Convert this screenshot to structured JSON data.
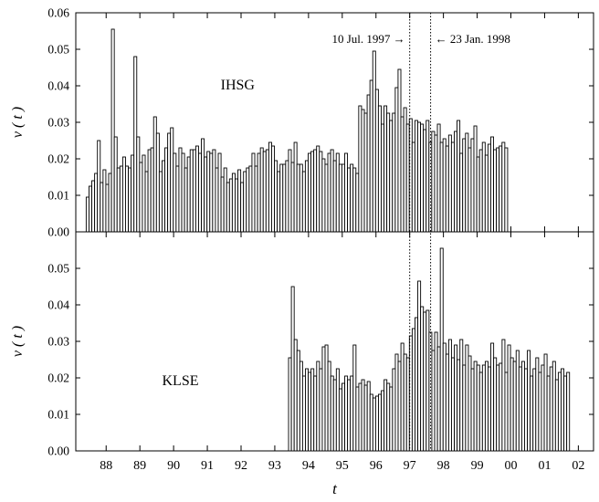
{
  "chart_data": [
    {
      "type": "bar",
      "panel_label": "IHSG",
      "ylabel": "v ( t )",
      "ylim": [
        0,
        0.06
      ],
      "yticks": [
        "0.00",
        "0.01",
        "0.02",
        "0.03",
        "0.04",
        "0.05",
        "0.06"
      ],
      "x_start": 1987.45,
      "x_step": 0.0833,
      "values": [
        0.0095,
        0.0125,
        0.014,
        0.016,
        0.025,
        0.0135,
        0.017,
        0.013,
        0.016,
        0.0555,
        0.026,
        0.0175,
        0.018,
        0.0205,
        0.018,
        0.0175,
        0.021,
        0.048,
        0.026,
        0.019,
        0.021,
        0.0165,
        0.0225,
        0.023,
        0.0315,
        0.027,
        0.0165,
        0.0195,
        0.023,
        0.027,
        0.0285,
        0.0215,
        0.018,
        0.023,
        0.0215,
        0.0175,
        0.0205,
        0.0225,
        0.0225,
        0.0235,
        0.0215,
        0.0255,
        0.0205,
        0.022,
        0.0215,
        0.0225,
        0.0175,
        0.0215,
        0.015,
        0.0175,
        0.0135,
        0.0145,
        0.016,
        0.0145,
        0.017,
        0.0135,
        0.0165,
        0.0175,
        0.018,
        0.0215,
        0.018,
        0.0215,
        0.023,
        0.022,
        0.0225,
        0.0245,
        0.0235,
        0.0195,
        0.0165,
        0.0185,
        0.0185,
        0.0195,
        0.0225,
        0.019,
        0.0245,
        0.0185,
        0.0185,
        0.0165,
        0.0195,
        0.0215,
        0.022,
        0.0225,
        0.0235,
        0.022,
        0.02,
        0.0185,
        0.0215,
        0.0225,
        0.0195,
        0.0215,
        0.0185,
        0.0185,
        0.0215,
        0.0175,
        0.0185,
        0.0175,
        0.016,
        0.0345,
        0.0335,
        0.0325,
        0.0375,
        0.0415,
        0.0495,
        0.039,
        0.0345,
        0.0295,
        0.0345,
        0.0325,
        0.0305,
        0.0325,
        0.0395,
        0.0445,
        0.0315,
        0.034,
        0.0295,
        0.031,
        0.0245,
        0.0305,
        0.03,
        0.0295,
        0.028,
        0.0305,
        0.0245,
        0.0275,
        0.0265,
        0.0295,
        0.0245,
        0.0255,
        0.0235,
        0.0265,
        0.0245,
        0.0275,
        0.0305,
        0.0215,
        0.0255,
        0.027,
        0.023,
        0.0255,
        0.029,
        0.0205,
        0.0225,
        0.0245,
        0.021,
        0.024,
        0.026,
        0.0225,
        0.023,
        0.0235,
        0.0245,
        0.023
      ]
    },
    {
      "type": "bar",
      "panel_label": "KLSE",
      "ylabel": "v ( t )",
      "ylim": [
        0,
        0.06
      ],
      "yticks": [
        "0.00",
        "0.01",
        "0.02",
        "0.03",
        "0.04",
        "0.05"
      ],
      "x_start": 1993.45,
      "x_step": 0.0833,
      "values": [
        0.0255,
        0.045,
        0.0305,
        0.0275,
        0.0245,
        0.0205,
        0.0225,
        0.0215,
        0.0225,
        0.0205,
        0.0245,
        0.0225,
        0.0285,
        0.029,
        0.0245,
        0.0205,
        0.0195,
        0.0225,
        0.017,
        0.0185,
        0.0205,
        0.0195,
        0.0205,
        0.029,
        0.0175,
        0.0185,
        0.0195,
        0.018,
        0.019,
        0.0155,
        0.0145,
        0.015,
        0.0155,
        0.0165,
        0.0195,
        0.0185,
        0.0175,
        0.0225,
        0.0265,
        0.0245,
        0.0295,
        0.0265,
        0.0255,
        0.0315,
        0.0335,
        0.0365,
        0.0465,
        0.0395,
        0.038,
        0.0385,
        0.0325,
        0.0275,
        0.0325,
        0.0285,
        0.0555,
        0.0295,
        0.0265,
        0.0305,
        0.0255,
        0.029,
        0.025,
        0.0305,
        0.0235,
        0.029,
        0.026,
        0.0225,
        0.0245,
        0.0235,
        0.0215,
        0.0235,
        0.0245,
        0.023,
        0.0295,
        0.0255,
        0.0235,
        0.024,
        0.0305,
        0.0215,
        0.029,
        0.0255,
        0.0245,
        0.0275,
        0.023,
        0.0245,
        0.0225,
        0.0275,
        0.0205,
        0.0225,
        0.0255,
        0.0215,
        0.0235,
        0.0265,
        0.0205,
        0.023,
        0.0245,
        0.0195,
        0.0215,
        0.0225,
        0.0205,
        0.0215
      ]
    }
  ],
  "x_axis": {
    "label": "t",
    "ticks": [
      "88",
      "89",
      "90",
      "91",
      "92",
      "93",
      "94",
      "95",
      "96",
      "97",
      "98",
      "99",
      "00",
      "01",
      "02"
    ],
    "tick_years": [
      1988,
      1989,
      1990,
      1991,
      1992,
      1993,
      1994,
      1995,
      1996,
      1997,
      1998,
      1999,
      2000,
      2001,
      2002
    ],
    "xlim": [
      1987.1,
      2002.45
    ]
  },
  "markers": [
    {
      "label": "10 Jul. 1997",
      "arrow": "→",
      "year": 1997.0
    },
    {
      "label": "23 Jan. 1998",
      "arrow": "←",
      "year": 1997.62
    }
  ],
  "colors": {
    "line": "#000000",
    "bar_fill": "#ffffff",
    "background": "#ffffff"
  }
}
